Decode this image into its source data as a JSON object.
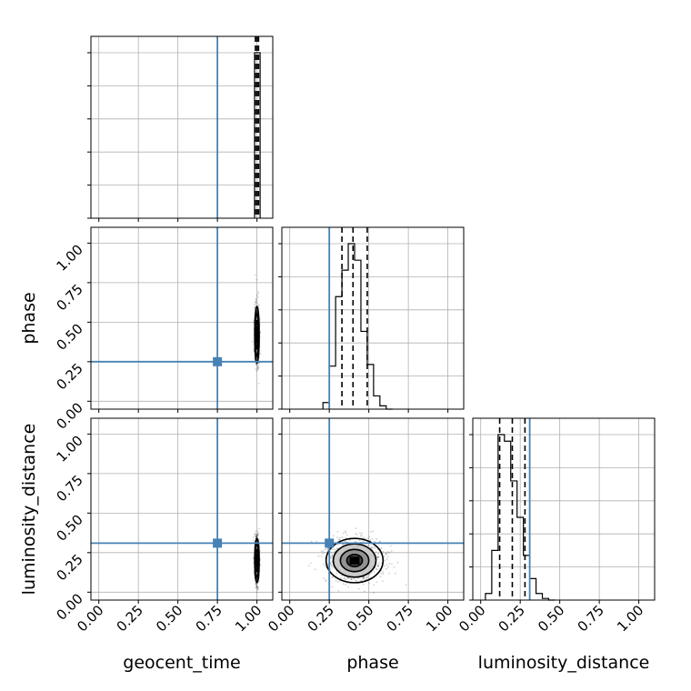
{
  "chart_data": {
    "type": "corner",
    "parameters": [
      "geocent_time",
      "phase",
      "luminosity_distance"
    ],
    "axis_labels": {
      "x": [
        "geocent_time",
        "phase",
        "luminosity_distance"
      ],
      "y": [
        "phase",
        "luminosity_distance"
      ]
    },
    "ticks": [
      0.0,
      0.25,
      0.5,
      0.75,
      1.0
    ],
    "tick_labels": [
      "0.00",
      "0.25",
      "0.50",
      "0.75",
      "1.00"
    ],
    "axis_range": [
      -0.05,
      1.1
    ],
    "grid": true,
    "truth_values": {
      "geocent_time": 0.75,
      "phase": 0.25,
      "luminosity_distance": 0.31
    },
    "truth_color": "#4682b4",
    "histogram_color": "#000000",
    "quantile_style": "dashed",
    "histograms": {
      "geocent_time": {
        "bin_edges": [
          0.985,
          1.02
        ],
        "counts": [
          1.0
        ],
        "quantiles": [
          0.99,
          1.0,
          1.01
        ]
      },
      "phase": {
        "bin_edges": [
          0.21,
          0.25,
          0.29,
          0.33,
          0.37,
          0.41,
          0.45,
          0.49,
          0.53,
          0.57,
          0.61,
          0.65
        ],
        "counts": [
          0.04,
          0.26,
          0.68,
          0.84,
          1.0,
          0.9,
          0.47,
          0.27,
          0.08,
          0.02,
          0.0
        ],
        "quantiles": [
          0.33,
          0.4,
          0.49
        ]
      },
      "luminosity_distance": {
        "bin_edges": [
          0.03,
          0.07,
          0.11,
          0.15,
          0.19,
          0.23,
          0.27,
          0.31,
          0.35,
          0.39,
          0.43,
          0.47
        ],
        "counts": [
          0.04,
          0.3,
          1.0,
          0.96,
          0.72,
          0.5,
          0.27,
          0.13,
          0.04,
          0.01,
          0.0
        ],
        "quantiles": [
          0.12,
          0.2,
          0.28
        ]
      }
    },
    "joint_distributions": [
      {
        "x": "geocent_time",
        "y": "phase",
        "center": [
          1.0,
          0.42
        ],
        "spread": [
          0.007,
          0.09
        ],
        "y_extent": [
          0.2,
          0.7
        ]
      },
      {
        "x": "geocent_time",
        "y": "luminosity_distance",
        "center": [
          1.0,
          0.2
        ],
        "spread": [
          0.007,
          0.07
        ],
        "y_extent": [
          0.07,
          0.5
        ]
      },
      {
        "x": "phase",
        "y": "luminosity_distance",
        "center": [
          0.41,
          0.2
        ],
        "spread": [
          0.09,
          0.07
        ],
        "x_extent": [
          0.22,
          0.7
        ],
        "y_extent": [
          0.07,
          0.4
        ]
      }
    ]
  }
}
